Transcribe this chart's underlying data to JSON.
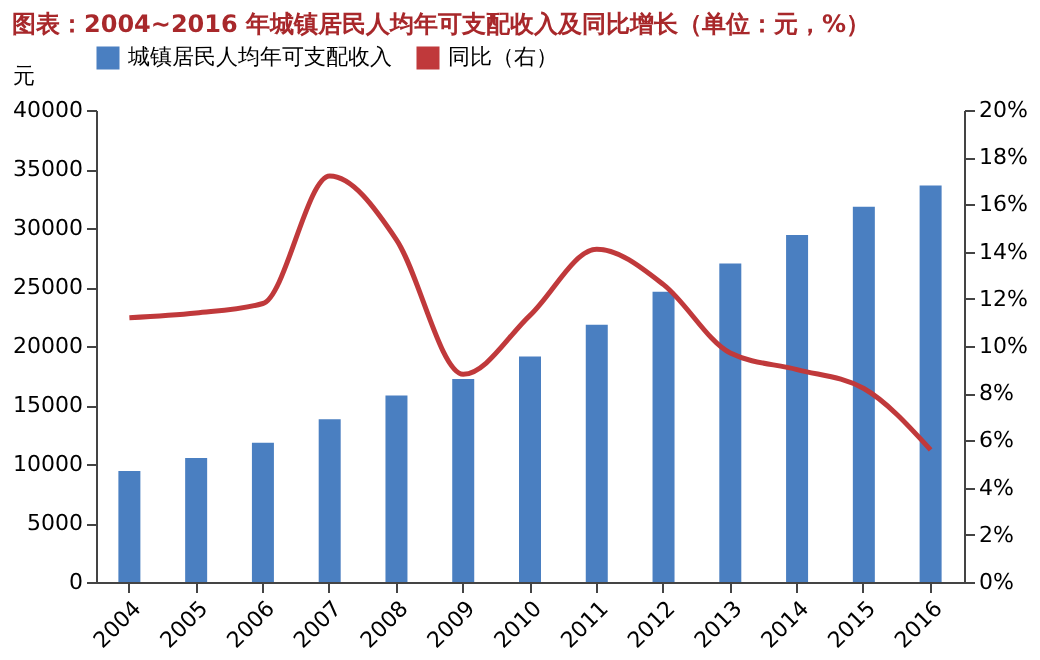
{
  "chart_data": {
    "type": "bar",
    "title": "图表：2004~2016 年城镇居民人均年可支配收入及同比增长（单位：元，%）",
    "ylabel": "元",
    "categories": [
      "2004",
      "2005",
      "2006",
      "2007",
      "2008",
      "2009",
      "2010",
      "2011",
      "2012",
      "2013",
      "2014",
      "2015",
      "2016"
    ],
    "series": [
      {
        "name": "城镇居民人均年可支配收入",
        "color": "#4a7fc1",
        "values": [
          9400,
          10500,
          11800,
          13800,
          15800,
          17200,
          19100,
          21800,
          24600,
          27000,
          29400,
          31800,
          33600
        ]
      },
      {
        "name": "同比（右）",
        "type": "line",
        "axis": "y2",
        "color": "#c0393b",
        "values": [
          11.2,
          11.4,
          11.8,
          17.2,
          14.5,
          8.8,
          11.3,
          14.1,
          12.6,
          9.7,
          9.0,
          8.2,
          5.6
        ]
      }
    ],
    "ylim": [
      0,
      40000
    ],
    "yticks": [
      0,
      5000,
      10000,
      15000,
      20000,
      25000,
      30000,
      35000,
      40000
    ],
    "y2lim": [
      0,
      20
    ],
    "y2ticks": [
      {
        "value": 0,
        "label": "0%"
      },
      {
        "value": 2,
        "label": "2%"
      },
      {
        "value": 4,
        "label": "4%"
      },
      {
        "value": 6,
        "label": "6%"
      },
      {
        "value": 8,
        "label": "8%"
      },
      {
        "value": 10,
        "label": "10%"
      },
      {
        "value": 12,
        "label": "12%"
      },
      {
        "value": 14,
        "label": "14%"
      },
      {
        "value": 16,
        "label": "16%"
      },
      {
        "value": 18,
        "label": "18%"
      },
      {
        "value": 20,
        "label": "20%"
      }
    ],
    "grid": false,
    "legend": "top",
    "marker": "none",
    "line_style": "solid"
  }
}
